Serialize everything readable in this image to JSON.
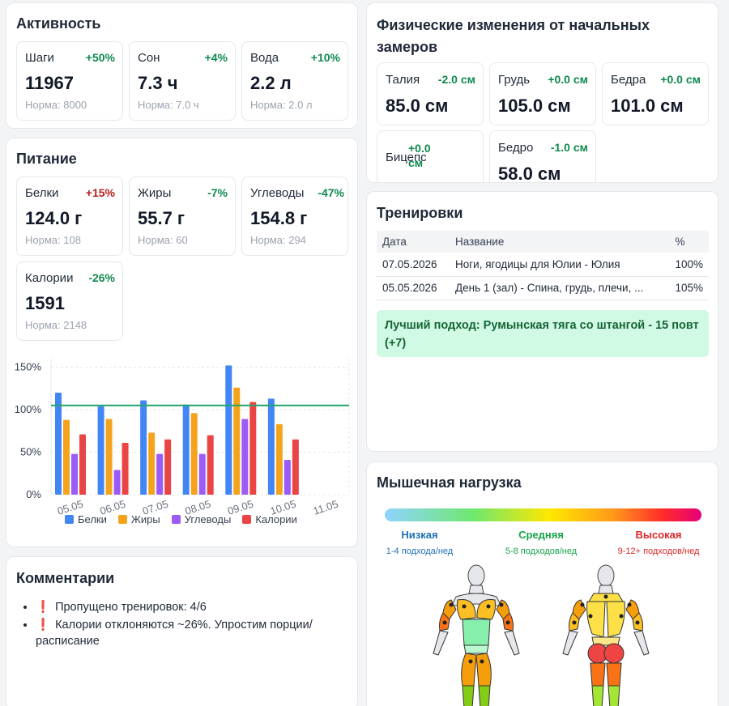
{
  "activity": {
    "title": "Активность",
    "metrics": [
      {
        "name": "Шаги",
        "delta": "+50%",
        "value": "11967",
        "norm": "Норма: 8000"
      },
      {
        "name": "Сон",
        "delta": "+4%",
        "value": "7.3 ч",
        "norm": "Норма: 7.0 ч"
      },
      {
        "name": "Вода",
        "delta": "+10%",
        "value": "2.2 л",
        "norm": "Норма: 2.0 л"
      }
    ]
  },
  "nutrition": {
    "title": "Питание",
    "metrics": [
      {
        "name": "Белки",
        "delta": "+15%",
        "value": "124.0 г",
        "norm": "Норма: 108"
      },
      {
        "name": "Жиры",
        "delta": "-7%",
        "value": "55.7 г",
        "norm": "Норма: 60"
      },
      {
        "name": "Углеводы",
        "delta": "-47%",
        "value": "154.8 г",
        "norm": "Норма: 294"
      },
      {
        "name": "Калории",
        "delta": "-26%",
        "value": "1591",
        "norm": "Норма: 2148"
      }
    ]
  },
  "chart_data": {
    "type": "bar",
    "categories": [
      "05.05",
      "06.05",
      "07.05",
      "08.05",
      "09.05",
      "10.05",
      "11.05"
    ],
    "series": [
      {
        "name": "Белки",
        "color": "#4285f4",
        "values": [
          120,
          104,
          111,
          106,
          152,
          113,
          0
        ]
      },
      {
        "name": "Жиры",
        "color": "#f4a41c",
        "values": [
          88,
          89,
          73,
          96,
          126,
          83,
          0
        ]
      },
      {
        "name": "Углеводы",
        "color": "#9b5cf6",
        "values": [
          48,
          29,
          48,
          48,
          89,
          41,
          0
        ]
      },
      {
        "name": "Калории",
        "color": "#ea4444",
        "values": [
          71,
          61,
          65,
          70,
          109,
          65,
          0
        ]
      }
    ],
    "yticks": [
      "0%",
      "50%",
      "100%",
      "150%"
    ],
    "ylim": [
      0,
      160
    ],
    "reference_line": 105,
    "reference_color": "#22a56b",
    "legend_position": "bottom"
  },
  "comments": {
    "title": "Комментарии",
    "items": [
      {
        "icon": "❗",
        "text": "Пропущено тренировок: 4/6"
      },
      {
        "icon": "❗",
        "text": "Калории отклоняются ~26%. Упростим порции/расписание"
      }
    ]
  },
  "measurements": {
    "title_line1": "Физические изменения от начальных",
    "title_line2": "замеров",
    "items": [
      {
        "name": "Талия",
        "delta": "-2.0 см",
        "value": "85.0 см"
      },
      {
        "name": "Грудь",
        "delta": "+0.0 см",
        "value": "105.0 см"
      },
      {
        "name": "Бедра",
        "delta": "+0.0 см",
        "value": "101.0 см"
      },
      {
        "name": "Бицепс",
        "delta": "+0.0 см",
        "value": ""
      },
      {
        "name": "Бедро",
        "delta": "-1.0 см",
        "value": "58.0 см"
      }
    ]
  },
  "workouts": {
    "title": "Тренировки",
    "headers": [
      "Дата",
      "Название",
      "%"
    ],
    "rows": [
      {
        "date": "07.05.2026",
        "name": "Ноги, ягодицы для Юлии - Юлия",
        "pct": "100%"
      },
      {
        "date": "05.05.2026",
        "name": "День 1 (зал) - Спина, грудь, плечи, ...",
        "pct": "105%"
      }
    ],
    "best": "Лучший подход: Румынская тяга со штангой - 15 повт (+7)"
  },
  "muscle": {
    "title": "Мышечная нагрузка",
    "levels": [
      {
        "label": "Низкая",
        "sub": "1-4 подхода/нед",
        "color": "#1f6fb5"
      },
      {
        "label": "Средняя",
        "sub": "5-8 подходов/нед",
        "color": "#16a34a"
      },
      {
        "label": "Высокая",
        "sub": "9-12+ подходов/нед",
        "color": "#dc2626"
      }
    ]
  }
}
